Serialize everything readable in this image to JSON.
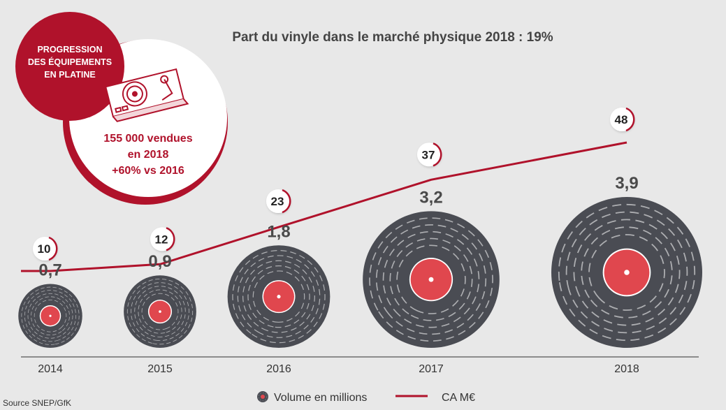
{
  "chart_data": {
    "type": "bubble+line",
    "title": "Part du vinyle dans le marché physique 2018 : 19%",
    "categories": [
      "2014",
      "2015",
      "2016",
      "2017",
      "2018"
    ],
    "series": [
      {
        "name": "Volume en millions",
        "kind": "vinyl-bubble",
        "values": [
          0.7,
          0.9,
          1.8,
          3.2,
          3.9
        ],
        "labels": [
          "0,7",
          "0,9",
          "1,8",
          "3,2",
          "3,9"
        ]
      },
      {
        "name": "CA M€",
        "kind": "line",
        "values": [
          10,
          12,
          23,
          37,
          48
        ],
        "labels": [
          "10",
          "12",
          "23",
          "37",
          "48"
        ]
      }
    ],
    "legend": {
      "placement": "bottom-center",
      "items": [
        "Volume en millions",
        "CA M€"
      ]
    },
    "grid": false,
    "colors": {
      "record": "#4a4c53",
      "label_disc": "#e0474e",
      "line": "#b0122b",
      "background": "#e8e8e8"
    }
  },
  "badge": {
    "title_lines": [
      "PROGRESSION",
      "DES ÉQUIPEMENTS",
      "EN PLATINE"
    ],
    "icon": "turntable-icon",
    "stat_lines": [
      "155 000 vendues",
      "en 2018",
      "+60% vs 2016"
    ]
  },
  "source": "Source SNEP/GfK"
}
